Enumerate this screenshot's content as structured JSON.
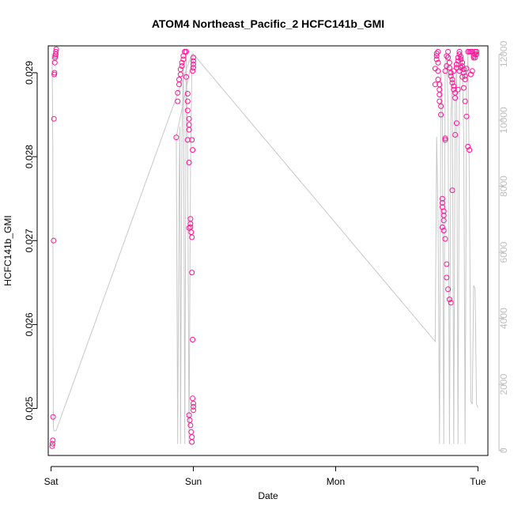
{
  "chart_data": {
    "type": "scatter",
    "title": "ATOM4 Northeast_Pacific_2 HCFC141b_GMI",
    "xlabel": "Date",
    "ylabel": "HCFC141b_GMI",
    "x_ticks": [
      "Sat",
      "Sun",
      "Mon",
      "Tue"
    ],
    "xlim": [
      -0.02,
      3.07
    ],
    "y_ticks": [
      "0.025",
      "0.026",
      "0.027",
      "0.028",
      "0.029"
    ],
    "y_tick_values": [
      0.025,
      0.026,
      0.027,
      0.028,
      0.029
    ],
    "ylim": [
      0.02444,
      0.02932
    ],
    "y2_ticks": [
      "0",
      "2000",
      "4000",
      "6000",
      "8000",
      "10000",
      "12000"
    ],
    "y2_tick_values": [
      0,
      2000,
      4000,
      6000,
      8000,
      10000,
      12000
    ],
    "y2lim": [
      -150,
      12250
    ],
    "grid": false,
    "colors": {
      "points": "#ff1493",
      "altitude_line": "#c8c8c8",
      "right_axis": "#bdbdbd"
    },
    "series": [
      {
        "kind": "points",
        "x": [
          0.008,
          0.01,
          0.012,
          0.014,
          0.018,
          0.02,
          0.022,
          0.024,
          0.026,
          0.028,
          0.03,
          0.032,
          0.034,
          0.036,
          0.88,
          0.89,
          0.89,
          0.9,
          0.9,
          0.91,
          0.91,
          0.92,
          0.92,
          0.93,
          0.93,
          0.94,
          0.94,
          0.95,
          0.95,
          0.96,
          0.96,
          0.96,
          0.97,
          0.97,
          0.97,
          0.96,
          0.97,
          0.97,
          0.98,
          0.98,
          0.98,
          0.985,
          0.99,
          0.99,
          0.995,
          0.995,
          1.0,
          1.0,
          1.0,
          0.97,
          0.975,
          0.98,
          0.985,
          0.99,
          0.99,
          0.99,
          0.995,
          0.995,
          1.0,
          1.0,
          1.0,
          1.0,
          2.7,
          2.7,
          2.71,
          2.71,
          2.71,
          2.72,
          2.72,
          2.72,
          2.72,
          2.73,
          2.73,
          2.73,
          2.73,
          2.74,
          2.74,
          2.75,
          2.75,
          2.75,
          2.76,
          2.76,
          2.76,
          2.77,
          2.77,
          2.77,
          2.78,
          2.78,
          2.79,
          2.79,
          2.8,
          2.8,
          2.81,
          2.81,
          2.82,
          2.82,
          2.83,
          2.83,
          2.84,
          2.84,
          2.85,
          2.85,
          2.86,
          2.86,
          2.87,
          2.87,
          2.88,
          2.88,
          2.89,
          2.89,
          2.9,
          2.9,
          2.91,
          2.91,
          2.92,
          2.93,
          2.94,
          2.95,
          2.96,
          2.97,
          2.98,
          2.98,
          2.99,
          2.99,
          2.75,
          2.76,
          2.77,
          2.78,
          2.78,
          2.79,
          2.8,
          2.81,
          2.82,
          2.83,
          2.84,
          2.85,
          2.86,
          2.87,
          2.88,
          2.89,
          2.9,
          2.91,
          2.92,
          2.93,
          2.94,
          2.95,
          2.96,
          2.97,
          2.98,
          2.99
        ],
        "y": [
          0.02455,
          0.02458,
          0.02462,
          0.0249,
          0.027,
          0.02845,
          0.02898,
          0.029,
          0.02912,
          0.02918,
          0.0292,
          0.02922,
          0.02925,
          0.02928,
          0.02823,
          0.02866,
          0.02876,
          0.02886,
          0.02892,
          0.02898,
          0.02904,
          0.02908,
          0.02912,
          0.02916,
          0.0292,
          0.02925,
          0.02925,
          0.02925,
          0.02895,
          0.02875,
          0.02866,
          0.02855,
          0.02845,
          0.02838,
          0.02832,
          0.0282,
          0.02793,
          0.02715,
          0.02726,
          0.0272,
          0.02716,
          0.0271,
          0.02704,
          0.02662,
          0.02582,
          0.02512,
          0.02506,
          0.02502,
          0.02498,
          0.02492,
          0.02486,
          0.0248,
          0.02472,
          0.02466,
          0.0246,
          0.0282,
          0.02808,
          0.02902,
          0.02906,
          0.0291,
          0.02914,
          0.02918,
          0.02886,
          0.02905,
          0.02916,
          0.0292,
          0.02923,
          0.02925,
          0.02912,
          0.02902,
          0.02892,
          0.02886,
          0.0288,
          0.02874,
          0.02866,
          0.0286,
          0.0285,
          0.0275,
          0.02745,
          0.0274,
          0.02735,
          0.0273,
          0.02724,
          0.0282,
          0.02822,
          0.02902,
          0.02908,
          0.0292,
          0.02925,
          0.02918,
          0.02912,
          0.02906,
          0.029,
          0.02896,
          0.02892,
          0.02888,
          0.02884,
          0.0288,
          0.02876,
          0.0287,
          0.02906,
          0.0291,
          0.02914,
          0.02918,
          0.02925,
          0.02922,
          0.02919,
          0.02916,
          0.02912,
          0.02908,
          0.02904,
          0.029,
          0.02896,
          0.02892,
          0.02905,
          0.02925,
          0.02925,
          0.02925,
          0.02925,
          0.0292,
          0.02925,
          0.02918,
          0.02922,
          0.02925,
          0.02716,
          0.02712,
          0.02702,
          0.02672,
          0.02656,
          0.02642,
          0.0263,
          0.02626,
          0.0276,
          0.02902,
          0.02826,
          0.0284,
          0.0288,
          0.02902,
          0.02906,
          0.02895,
          0.02882,
          0.02866,
          0.02848,
          0.02812,
          0.02808,
          0.02898,
          0.02902,
          0.02918,
          0.02922,
          0.02925
        ]
      },
      {
        "kind": "line",
        "axis": "right",
        "x": [
          0.0,
          0.008,
          0.012,
          0.014,
          0.016,
          0.02,
          0.025,
          0.03,
          0.035,
          0.99,
          1.0,
          0.88,
          0.89,
          0.9,
          0.905,
          0.91,
          0.92,
          0.93,
          0.94,
          0.95,
          0.96,
          0.97,
          0.98,
          0.99,
          1.0,
          2.7,
          2.71,
          2.72,
          2.73,
          2.74,
          2.75,
          2.76,
          2.77,
          2.78,
          2.79,
          2.8,
          2.81,
          2.82,
          2.83,
          2.84,
          2.85,
          2.86,
          2.87,
          2.88,
          2.89,
          2.9,
          2.91,
          2.92,
          2.93,
          2.94,
          2.95,
          2.96,
          2.97,
          2.98,
          2.99,
          3.0
        ],
        "y": [
          12000,
          12000,
          9000,
          3200,
          700,
          600,
          600,
          600,
          600,
          12000,
          12000,
          9500,
          200,
          8000,
          9800,
          200,
          9500,
          11800,
          200,
          12000,
          9000,
          200,
          8500,
          11800,
          12000,
          3300,
          9500,
          7000,
          200,
          11500,
          10300,
          200,
          11800,
          12000,
          10500,
          200,
          10000,
          11500,
          200,
          10400,
          11800,
          200,
          10500,
          12000,
          11800,
          9500,
          200,
          11000,
          12000,
          8000,
          1500,
          1400,
          5000,
          4900,
          1400,
          1300
        ]
      }
    ]
  }
}
